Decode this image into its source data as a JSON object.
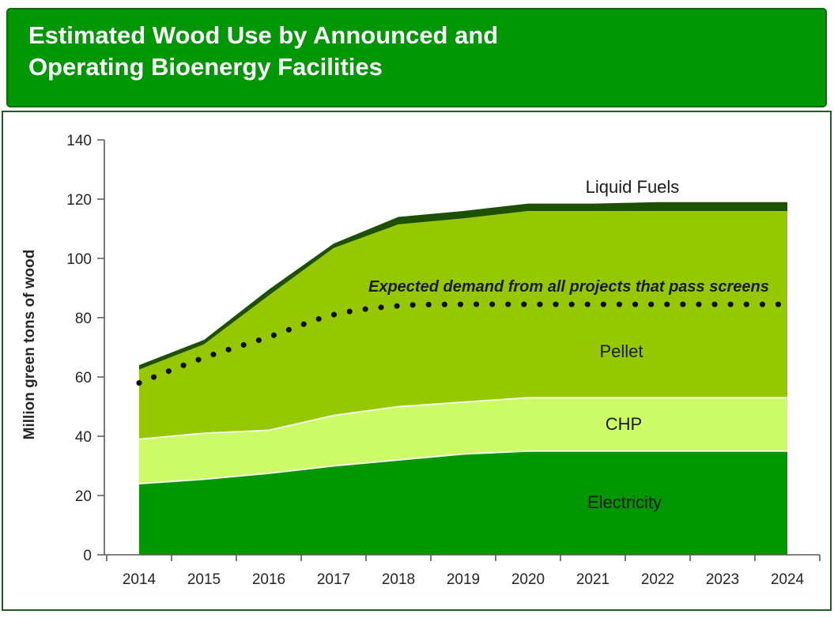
{
  "title_bar": {
    "lines": [
      "Estimated Wood Use by Announced and",
      "Operating Bioenergy Facilities"
    ],
    "bg_color": "#009704",
    "text_color": "#ffffff"
  },
  "chart_data": {
    "type": "area",
    "stacked": true,
    "title": "Estimated Wood Use by Announced and Operating Bioenergy Facilities",
    "xlabel": "",
    "ylabel": "Million green tons of wood",
    "x": [
      2014,
      2015,
      2016,
      2017,
      2018,
      2019,
      2020,
      2021,
      2022,
      2023,
      2024
    ],
    "ylim": [
      0,
      140
    ],
    "ytick_step": 20,
    "grid": false,
    "legend_position": "labels-inside-plot",
    "series": [
      {
        "name": "Electricity",
        "color": "#009702",
        "values": [
          24,
          25.5,
          27.5,
          30,
          32,
          34,
          35,
          35,
          35,
          35,
          35
        ]
      },
      {
        "name": "CHP",
        "color": "#ccfb67",
        "values": [
          15,
          15.5,
          14.5,
          17,
          18,
          17.5,
          18,
          18,
          18,
          18,
          18
        ]
      },
      {
        "name": "Pellet",
        "color": "#95c801",
        "values": [
          23.5,
          30,
          45.5,
          56.5,
          61.5,
          62,
          63,
          63,
          63,
          63,
          63
        ]
      },
      {
        "name": "Liquid Fuels",
        "color": "#1d5000",
        "values": [
          1.5,
          1.5,
          2,
          1.5,
          2.5,
          2.5,
          2.5,
          2.5,
          3,
          3,
          3
        ]
      }
    ],
    "stack_totals": [
      64,
      72.5,
      89.5,
      105,
      114,
      116,
      118.5,
      118.5,
      119,
      119,
      119
    ],
    "dotted_series": {
      "name": "Expected demand from all projects that pass screens",
      "color": "#0d0d0d",
      "style": "dotted",
      "values": [
        58,
        66.5,
        73.5,
        81,
        84,
        84.5,
        84.5,
        84.5,
        84.5,
        84.5,
        84.5
      ]
    },
    "axis_color": "#595959",
    "tick_label_color": "#262626"
  }
}
